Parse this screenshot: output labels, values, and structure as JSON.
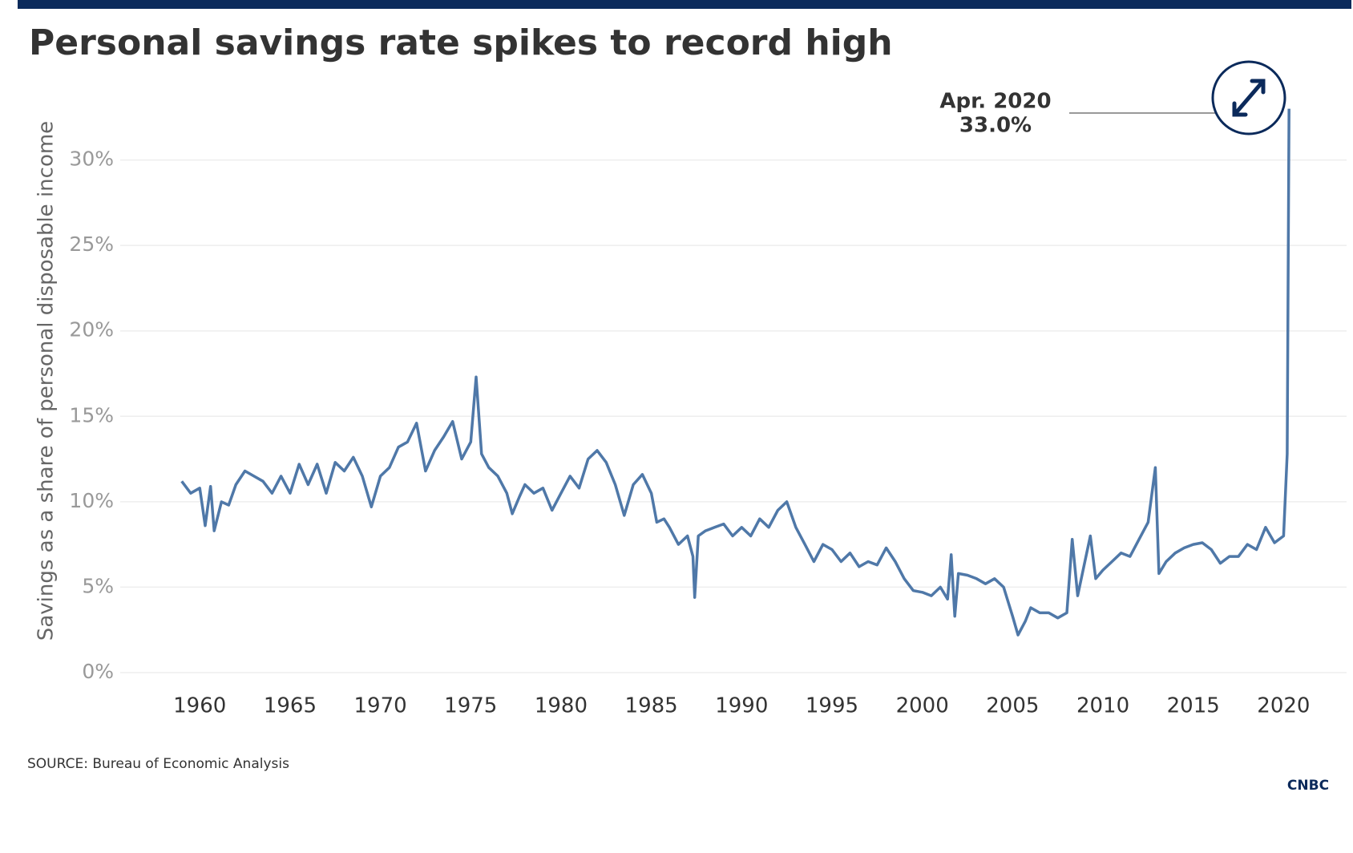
{
  "chart_data": {
    "type": "line",
    "title": "Personal savings rate spikes to record high",
    "y_label": "Savings as a share of personal disposable income",
    "source": "SOURCE: Bureau of Economic Analysis",
    "logo": "CNBC",
    "annotation": {
      "date": "Apr. 2020",
      "value": "33.0%"
    },
    "color": "#4f78a8",
    "grid": true,
    "xlim": [
      1954,
      2023
    ],
    "ylim": [
      0,
      35
    ],
    "xticks": [
      1960,
      1965,
      1970,
      1975,
      1980,
      1985,
      1990,
      1995,
      2000,
      2005,
      2010,
      2015,
      2020
    ],
    "yticks": [
      {
        "value": 0,
        "label": "0%"
      },
      {
        "value": 5,
        "label": "5%"
      },
      {
        "value": 10,
        "label": "10%"
      },
      {
        "value": 15,
        "label": "15%"
      },
      {
        "value": 20,
        "label": "20%"
      },
      {
        "value": 25,
        "label": "25%"
      },
      {
        "value": 30,
        "label": "30%"
      }
    ],
    "x": [
      1959.0,
      1959.5,
      1960.0,
      1960.3,
      1960.6,
      1960.8,
      1961.2,
      1961.6,
      1962,
      1962.5,
      1963,
      1963.5,
      1964,
      1964.5,
      1965,
      1965.5,
      1966,
      1966.5,
      1967,
      1967.5,
      1968,
      1968.5,
      1969,
      1969.5,
      1970,
      1970.5,
      1971,
      1971.5,
      1972,
      1972.5,
      1973,
      1973.5,
      1974,
      1974.5,
      1975,
      1975.3,
      1975.6,
      1976,
      1976.5,
      1977,
      1977.3,
      1977.7,
      1978,
      1978.5,
      1979,
      1979.5,
      1980,
      1980.5,
      1981,
      1981.5,
      1982,
      1982.5,
      1983,
      1983.5,
      1984,
      1984.5,
      1985,
      1985.3,
      1985.7,
      1986,
      1986.5,
      1987,
      1987.3,
      1987.4,
      1987.6,
      1988,
      1988.5,
      1989,
      1989.5,
      1990,
      1990.5,
      1991,
      1991.5,
      1992,
      1992.5,
      1993,
      1993.5,
      1994,
      1994.5,
      1995,
      1995.5,
      1996,
      1996.5,
      1997,
      1997.5,
      1998,
      1998.5,
      1999,
      1999.5,
      2000,
      2000.5,
      2001,
      2001.4,
      2001.6,
      2001.8,
      2002,
      2002.5,
      2003,
      2003.5,
      2004,
      2004.5,
      2005,
      2005.3,
      2005.7,
      2006,
      2006.5,
      2007,
      2007.5,
      2008,
      2008.3,
      2008.6,
      2009,
      2009.3,
      2009.6,
      2010,
      2010.5,
      2011,
      2011.5,
      2012,
      2012.5,
      2012.9,
      2013.1,
      2013.5,
      2014,
      2014.5,
      2015,
      2015.5,
      2016,
      2016.5,
      2017,
      2017.5,
      2018,
      2018.5,
      2019,
      2019.5,
      2020,
      2020.2,
      2020.3
    ],
    "values": [
      11.2,
      10.5,
      10.8,
      8.6,
      10.9,
      8.3,
      10.0,
      9.8,
      11.0,
      11.8,
      11.5,
      11.2,
      10.5,
      11.5,
      10.5,
      12.2,
      11.0,
      12.2,
      10.5,
      12.3,
      11.8,
      12.6,
      11.5,
      9.7,
      11.5,
      12.0,
      13.2,
      13.5,
      14.6,
      11.8,
      13.0,
      13.8,
      14.7,
      12.5,
      13.5,
      17.3,
      12.8,
      12.0,
      11.5,
      10.5,
      9.3,
      10.3,
      11.0,
      10.5,
      10.8,
      9.5,
      10.5,
      11.5,
      10.8,
      12.5,
      13.0,
      12.3,
      11.0,
      9.2,
      11.0,
      11.6,
      10.5,
      8.8,
      9.0,
      8.5,
      7.5,
      8.0,
      6.8,
      4.4,
      8.0,
      8.3,
      8.5,
      8.7,
      8.0,
      8.5,
      8.0,
      9.0,
      8.5,
      9.5,
      10.0,
      8.5,
      7.5,
      6.5,
      7.5,
      7.2,
      6.5,
      7.0,
      6.2,
      6.5,
      6.3,
      7.3,
      6.5,
      5.5,
      4.8,
      4.7,
      4.5,
      5.0,
      4.3,
      6.9,
      3.3,
      5.8,
      5.7,
      5.5,
      5.2,
      5.5,
      5.0,
      3.3,
      2.2,
      3.0,
      3.8,
      3.5,
      3.5,
      3.2,
      3.5,
      7.8,
      4.5,
      6.5,
      8.0,
      5.5,
      6.0,
      6.5,
      7.0,
      6.8,
      7.8,
      8.8,
      12.0,
      5.8,
      6.5,
      7.0,
      7.3,
      7.5,
      7.6,
      7.2,
      6.4,
      6.8,
      6.8,
      7.5,
      7.2,
      8.5,
      7.6,
      8.0,
      12.8,
      33.0
    ]
  }
}
